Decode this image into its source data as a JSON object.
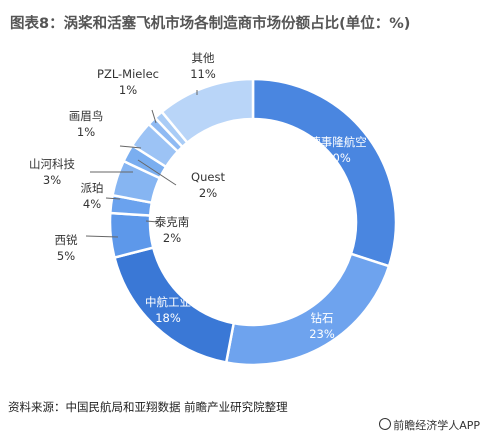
{
  "title": "图表8：涡桨和活塞飞机市场各制造商市场份额占比(单位：%)",
  "source": "资料来源：中国民航局和亚翔数据 前瞻产业研究院整理",
  "footer": "前瞻经济学人APP",
  "chart_data": {
    "type": "pie",
    "donut": true,
    "unit": "%",
    "slices": [
      {
        "name": "德事隆航空",
        "value": 30,
        "color": "#4a86e0"
      },
      {
        "name": "钻石",
        "value": 23,
        "color": "#6ea3ee"
      },
      {
        "name": "中航工业",
        "value": 18,
        "color": "#3a78d6"
      },
      {
        "name": "西锐",
        "value": 5,
        "color": "#5d98ea"
      },
      {
        "name": "泰克南",
        "value": 2,
        "color": "#6aa2ee"
      },
      {
        "name": "派珀",
        "value": 4,
        "color": "#86b5f2"
      },
      {
        "name": "Quest",
        "value": 2,
        "color": "#7aaef0"
      },
      {
        "name": "山河科技",
        "value": 3,
        "color": "#9cc3f5"
      },
      {
        "name": "画眉鸟",
        "value": 1,
        "color": "#8fbaf3"
      },
      {
        "name": "PZL-Mielec",
        "value": 1,
        "color": "#a9ccf6"
      },
      {
        "name": "其他",
        "value": 11,
        "color": "#b9d5f8"
      }
    ]
  }
}
